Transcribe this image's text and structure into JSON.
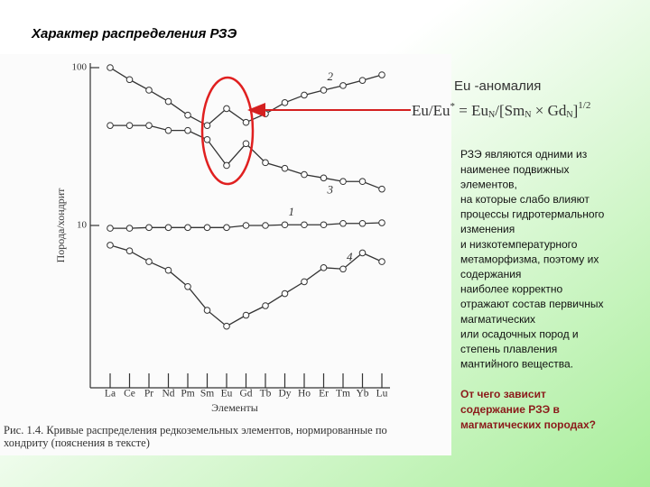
{
  "slide": {
    "title": "Характер распределения РЗЭ",
    "anomaly_title": "Eu -аномалия",
    "formula": [
      "Eu/Eu",
      "*",
      " = Eu",
      "N",
      "/[Sm",
      "N",
      " × Gd",
      "N",
      "]",
      "1/2"
    ],
    "text_lines": [
      "РЗЭ являются одними из",
      "наименее подвижных",
      "элементов,",
      "на которые слабо влияют",
      "процессы гидротермального",
      "изменения",
      "и низкотемпературного",
      "метаморфизма, поэтому их",
      "содержания",
      "наиболее корректно",
      "отражают состав первичных",
      "магматических",
      "или осадочных пород и",
      "степень плавления",
      "мантийного вещества."
    ],
    "question_lines": [
      "От чего зависит",
      "содержание РЗЭ в",
      "магматических породах?"
    ],
    "caption_lines": [
      "Рис. 1.4. Кривые распределения редкоземельных элементов, нормированные по",
      "хондриту (пояснения в тексте)"
    ]
  },
  "chart_data": {
    "type": "line",
    "x_label": "Элементы",
    "y_label": "Порода/хондрит",
    "categories": [
      "La",
      "Ce",
      "Pr",
      "Nd",
      "Pm",
      "Sm",
      "Eu",
      "Gd",
      "Tb",
      "Dy",
      "Ho",
      "Er",
      "Tm",
      "Yb",
      "Lu"
    ],
    "log_scale": true,
    "ylim": [
      1,
      100
    ],
    "yticks": [
      10,
      100
    ],
    "series": [
      {
        "name": "1",
        "color": "#333333",
        "values": [
          9.6,
          9.6,
          9.7,
          9.7,
          9.7,
          9.7,
          9.7,
          10,
          10,
          10.1,
          10.1,
          10.1,
          10.3,
          10.3,
          10.4
        ]
      },
      {
        "name": "2",
        "color": "#333333",
        "values": [
          100,
          84,
          72,
          61,
          50,
          43,
          55,
          45,
          51,
          60,
          67,
          72,
          77,
          83,
          90
        ]
      },
      {
        "name": "3",
        "color": "#333333",
        "values": [
          43,
          43,
          43,
          40,
          40,
          35,
          24,
          33,
          25,
          23,
          21,
          20,
          19,
          19,
          17
        ]
      },
      {
        "name": "4",
        "color": "#333333",
        "values": [
          7.5,
          6.9,
          5.9,
          5.2,
          4.1,
          2.9,
          2.3,
          2.7,
          3.1,
          3.7,
          4.4,
          5.4,
          5.3,
          6.7,
          5.9
        ]
      }
    ]
  }
}
